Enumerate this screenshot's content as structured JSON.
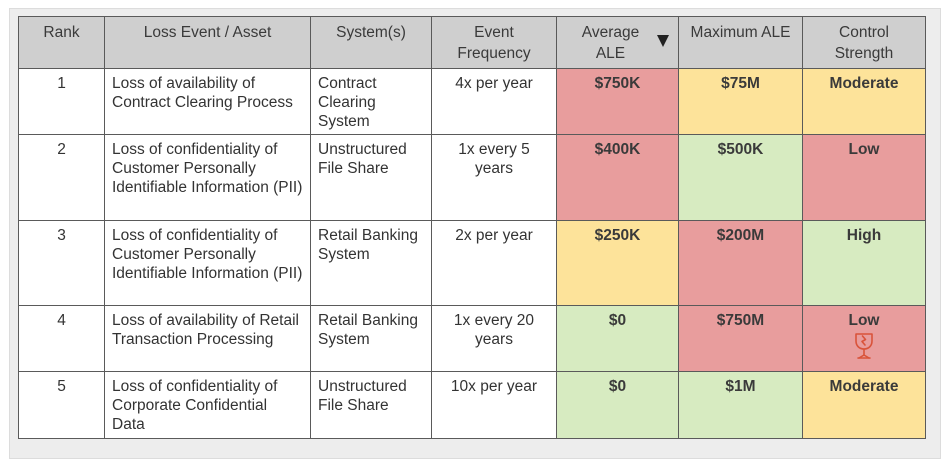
{
  "headers": {
    "rank": "Rank",
    "loss_event": "Loss Event / Asset",
    "systems": "System(s)",
    "frequency": "Event Frequency",
    "avg_ale": "Average ALE",
    "max_ale": "Maximum ALE",
    "control": "Control Strength"
  },
  "colors": {
    "red": "#e89d9d",
    "yellow": "#fde39a",
    "green": "#d7ebc1",
    "header": "#cfcfcf",
    "icon": "#d9533a"
  },
  "icons": {
    "sort": "sort-descending-icon",
    "fragile": "broken-glass-icon"
  },
  "rows": [
    {
      "rank": "1",
      "loss_event": "Loss of availability of Contract Clearing Process",
      "systems": "Contract Clearing System",
      "frequency": "4x per year",
      "avg_ale": "$750K",
      "max_ale": "$75M",
      "control": "Moderate"
    },
    {
      "rank": "2",
      "loss_event": "Loss of confidentiality of Customer Personally Identifiable Information (PII)",
      "systems": "Unstructured File Share",
      "frequency": "1x every 5 years",
      "avg_ale": "$400K",
      "max_ale": "$500K",
      "control": "Low"
    },
    {
      "rank": "3",
      "loss_event": "Loss of confidentiality of Customer Personally Identifiable Information (PII)",
      "systems": "Retail Banking System",
      "frequency": "2x per year",
      "avg_ale": "$250K",
      "max_ale": "$200M",
      "control": "High"
    },
    {
      "rank": "4",
      "loss_event": "Loss of availability of Retail Transaction Processing",
      "systems": "Retail Banking System",
      "frequency": "1x every 20 years",
      "avg_ale": "$0",
      "max_ale": "$750M",
      "control": "Low"
    },
    {
      "rank": "5",
      "loss_event": "Loss of confidentiality of Corporate Confidential Data",
      "systems": "Unstructured File Share",
      "frequency": "10x per year",
      "avg_ale": "$0",
      "max_ale": "$1M",
      "control": "Moderate"
    }
  ]
}
